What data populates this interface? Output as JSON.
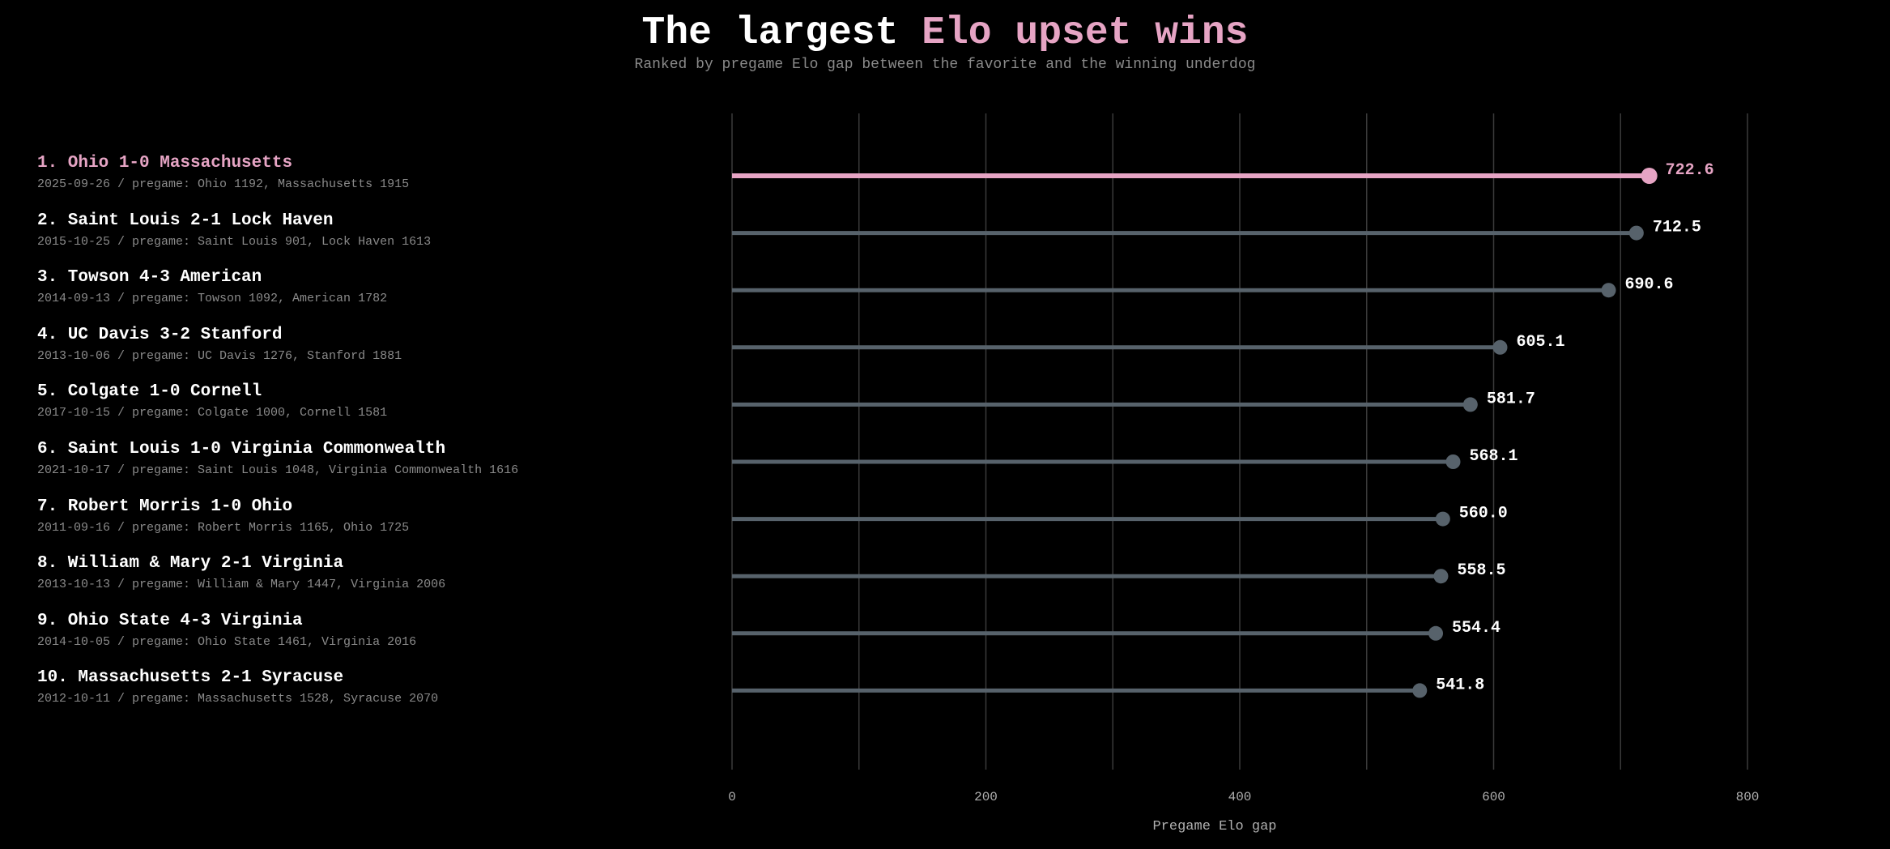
{
  "header": {
    "title_prefix": "The largest ",
    "title_accent": "Elo upset wins",
    "subtitle": "Ranked by pregame Elo gap between the favorite and the winning underdog"
  },
  "colors": {
    "background": "#000000",
    "highlight": "#e6a4c4",
    "bar": "#57626b",
    "grid": "#3a3a3a",
    "text": "#ffffff",
    "muted": "#8a8a8a"
  },
  "rows": [
    {
      "label": "1. Ohio 1-0 Massachusetts",
      "detail": "2025-09-26 / pregame: Ohio 1192, Massachusetts 1915"
    },
    {
      "label": "2. Saint Louis 2-1 Lock Haven",
      "detail": "2015-10-25 / pregame: Saint Louis 901, Lock Haven 1613"
    },
    {
      "label": "3. Towson 4-3 American",
      "detail": "2014-09-13 / pregame: Towson 1092, American 1782"
    },
    {
      "label": "4. UC Davis 3-2 Stanford",
      "detail": "2013-10-06 / pregame: UC Davis 1276, Stanford 1881"
    },
    {
      "label": "5. Colgate 1-0 Cornell",
      "detail": "2017-10-15 / pregame: Colgate 1000, Cornell 1581"
    },
    {
      "label": "6. Saint Louis 1-0 Virginia Commonwealth",
      "detail": "2021-10-17 / pregame: Saint Louis 1048, Virginia Commonwealth 1616"
    },
    {
      "label": "7. Robert Morris 1-0 Ohio",
      "detail": "2011-09-16 / pregame: Robert Morris 1165, Ohio 1725"
    },
    {
      "label": "8. William & Mary 2-1 Virginia",
      "detail": "2013-10-13 / pregame: William & Mary 1447, Virginia 2006"
    },
    {
      "label": "9. Ohio State 4-3 Virginia",
      "detail": "2014-10-05 / pregame: Ohio State 1461, Virginia 2016"
    },
    {
      "label": "10. Massachusetts 2-1 Syracuse",
      "detail": "2012-10-11 / pregame: Massachusetts 1528, Syracuse 2070"
    }
  ],
  "chart_data": {
    "type": "bar",
    "orientation": "horizontal",
    "style": "lollipop",
    "categories": [
      "1. Ohio 1-0 Massachusetts",
      "2. Saint Louis 2-1 Lock Haven",
      "3. Towson 4-3 American",
      "4. UC Davis 3-2 Stanford",
      "5. Colgate 1-0 Cornell",
      "6. Saint Louis 1-0 Virginia Commonwealth",
      "7. Robert Morris 1-0 Ohio",
      "8. William & Mary 2-1 Virginia",
      "9. Ohio State 4-3 Virginia",
      "10. Massachusetts 2-1 Syracuse"
    ],
    "values": [
      722.6,
      712.5,
      690.6,
      605.1,
      581.7,
      568.1,
      560.0,
      558.5,
      554.4,
      541.8
    ],
    "value_labels": [
      "722.6",
      "712.5",
      "690.6",
      "605.1",
      "581.7",
      "568.1",
      "560.0",
      "558.5",
      "554.4",
      "541.8"
    ],
    "highlight_index": 0,
    "xlabel": "Pregame Elo gap",
    "xlim": [
      0,
      800
    ],
    "xticks": [
      0,
      200,
      400,
      600,
      800
    ],
    "x_gridlines": [
      0,
      100,
      200,
      300,
      400,
      500,
      600,
      700,
      800
    ],
    "grid": true
  }
}
